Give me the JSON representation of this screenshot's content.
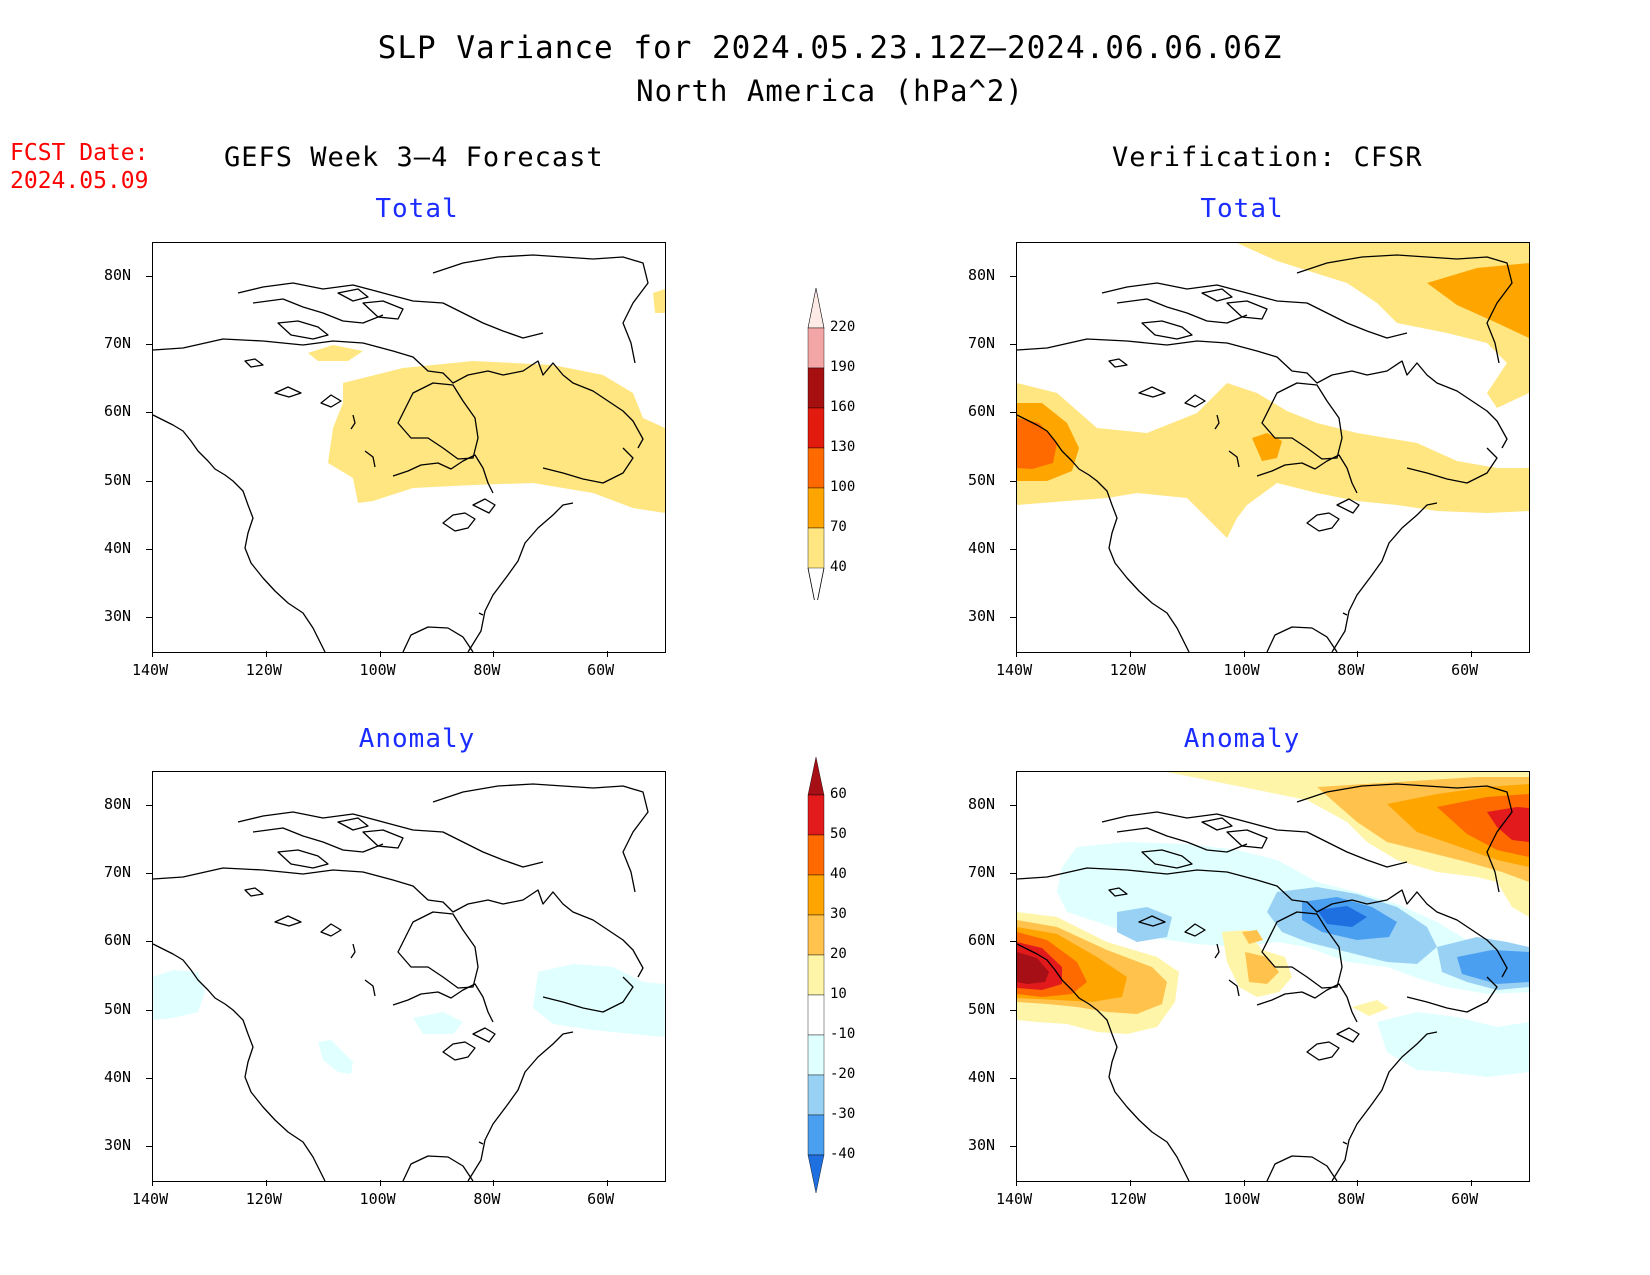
{
  "header": {
    "title": "SLP Variance for 2024.05.23.12Z–2024.06.06.06Z",
    "subtitle": "North America (hPa^2)",
    "fcst_date_label": "FCST Date:",
    "fcst_date_value": "2024.05.09"
  },
  "columns": {
    "left_title": "GEFS Week 3–4 Forecast",
    "right_title": "Verification: CFSR"
  },
  "panels": {
    "forecast_total_title": "Total",
    "forecast_anomaly_title": "Anomaly",
    "verification_total_title": "Total",
    "verification_anomaly_title": "Anomaly"
  },
  "axes": {
    "lat_labels": [
      "80N",
      "70N",
      "60N",
      "50N",
      "40N",
      "30N"
    ],
    "lon_labels": [
      "140W",
      "120W",
      "100W",
      "80W",
      "60W"
    ],
    "lat_range": [
      25,
      85
    ],
    "lon_range": [
      -140,
      -50
    ]
  },
  "colorbars": {
    "total": {
      "labels": [
        "220",
        "190",
        "160",
        "130",
        "100",
        "70",
        "40"
      ],
      "colors": [
        "#fdeae6",
        "#f4a6a6",
        "#a50f0f",
        "#e31a0e",
        "#ff6a00",
        "#ffa500",
        "#ffe680"
      ]
    },
    "anomaly": {
      "labels": [
        "60",
        "50",
        "40",
        "30",
        "20",
        "10",
        "-10",
        "-20",
        "-30",
        "-40"
      ],
      "colors": [
        "#a50f15",
        "#e31a1c",
        "#ff6a00",
        "#ffa500",
        "#ffc34d",
        "#fff5a8",
        "#ffffff",
        "#e0ffff",
        "#99d1f5",
        "#4a9ff0",
        "#1e6fe0"
      ]
    }
  },
  "legend_colors": {
    "c40": "#ffe680",
    "c70": "#ffa500",
    "c100": "#ff6a00",
    "c160": "#a50f0f",
    "a10": "#fff5a8",
    "a20": "#ffc34d",
    "a30": "#ffa500",
    "a40": "#ff6a00",
    "a50": "#e31a1c",
    "a60": "#a50f15",
    "n10": "#e0ffff",
    "n20": "#99d1f5",
    "n30": "#4a9ff0",
    "n40": "#1e6fe0"
  }
}
